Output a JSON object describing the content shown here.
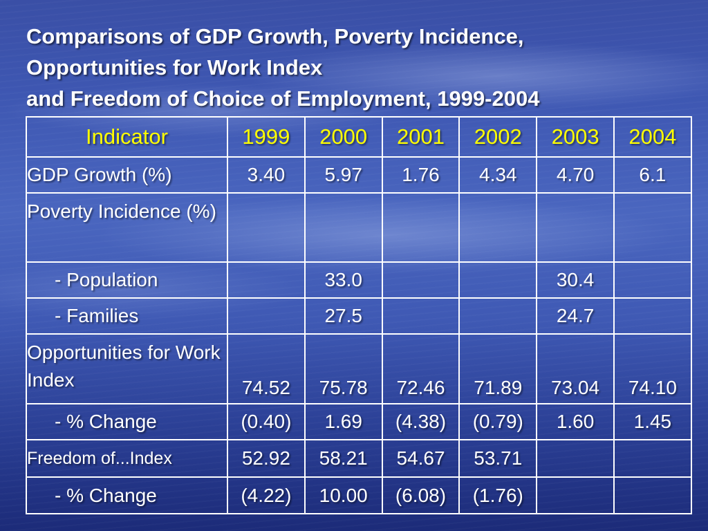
{
  "title": {
    "line1": "Comparisons of GDP Growth, Poverty Incidence,",
    "line2": "Opportunities for Work Index",
    "line3": "and Freedom of Choice of Employment, 1999-2004"
  },
  "table": {
    "headers": [
      "Indicator",
      "1999",
      "2000",
      "2001",
      "2002",
      "2003",
      "2004"
    ],
    "rows": [
      {
        "label": "GDP Growth (%)",
        "values": [
          "3.40",
          "5.97",
          "1.76",
          "4.34",
          "4.70",
          "6.1"
        ]
      },
      {
        "label": "Poverty Incidence (%)",
        "values": [
          "",
          "",
          "",
          "",
          "",
          ""
        ]
      },
      {
        "label": "- Population",
        "values": [
          "",
          "33.0",
          "",
          "",
          "30.4",
          ""
        ]
      },
      {
        "label": "- Families",
        "values": [
          "",
          "27.5",
          "",
          "",
          "24.7",
          ""
        ]
      },
      {
        "label": "Opportunities for Work Index",
        "values": [
          "74.52",
          "75.78",
          "72.46",
          "71.89",
          "73.04",
          "74.10"
        ]
      },
      {
        "label": "- % Change",
        "values": [
          "(0.40)",
          "1.69",
          "(4.38)",
          "(0.79)",
          "1.60",
          "1.45"
        ]
      },
      {
        "label": "Freedom of...Index",
        "values": [
          "52.92",
          "58.21",
          "54.67",
          "53.71",
          "",
          ""
        ]
      },
      {
        "label": "- % Change",
        "values": [
          "(4.22)",
          "10.00",
          "(6.08)",
          "(1.76)",
          "",
          ""
        ]
      }
    ]
  },
  "colors": {
    "header_text": "#ffff00",
    "body_text": "#ffffff",
    "grid_lines": "#ffffff",
    "background": "#3e57b2"
  }
}
